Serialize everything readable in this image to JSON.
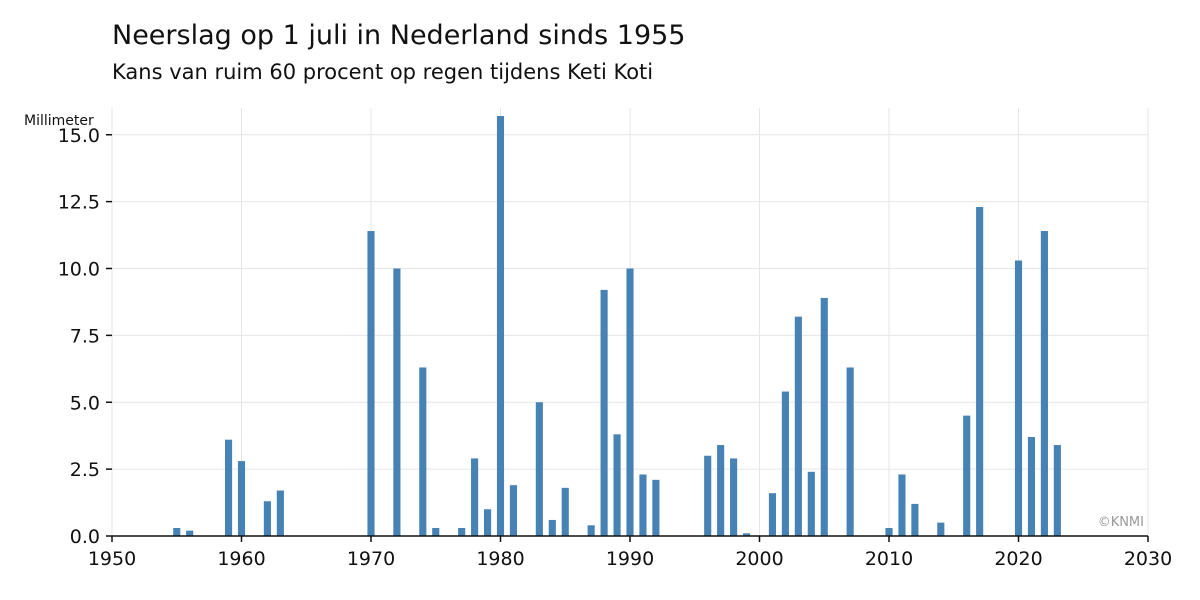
{
  "chart_data": {
    "type": "bar",
    "title": "Neerslag op 1 juli in Nederland sinds 1955",
    "subtitle": "Kans van ruim 60 procent op regen tijdens Keti Koti",
    "ylabel": "Millimeter",
    "xlabel": "",
    "credit": "©KNMI",
    "xlim": [
      1950,
      2030
    ],
    "ylim": [
      0,
      16
    ],
    "x_ticks": [
      1950,
      1960,
      1970,
      1980,
      1990,
      2000,
      2010,
      2020,
      2030
    ],
    "y_ticks": [
      0,
      2.5,
      5,
      7.5,
      10,
      12.5,
      15
    ],
    "grid": true,
    "bar_color": "#4682b4",
    "x": [
      1955,
      1956,
      1957,
      1958,
      1959,
      1960,
      1961,
      1962,
      1963,
      1964,
      1965,
      1966,
      1967,
      1968,
      1969,
      1970,
      1971,
      1972,
      1973,
      1974,
      1975,
      1976,
      1977,
      1978,
      1979,
      1980,
      1981,
      1982,
      1983,
      1984,
      1985,
      1986,
      1987,
      1988,
      1989,
      1990,
      1991,
      1992,
      1993,
      1994,
      1995,
      1996,
      1997,
      1998,
      1999,
      2000,
      2001,
      2002,
      2003,
      2004,
      2005,
      2006,
      2007,
      2008,
      2009,
      2010,
      2011,
      2012,
      2013,
      2014,
      2015,
      2016,
      2017,
      2018,
      2019,
      2020,
      2021,
      2022,
      2023
    ],
    "values": [
      0.3,
      0.2,
      0,
      0,
      3.6,
      2.8,
      0,
      1.3,
      1.7,
      0,
      0,
      0,
      0,
      0,
      0,
      11.4,
      0,
      10.0,
      0,
      6.3,
      0.3,
      0,
      0.3,
      2.9,
      1.0,
      15.7,
      1.9,
      0,
      5.0,
      0.6,
      1.8,
      0,
      0.4,
      9.2,
      3.8,
      10.0,
      2.3,
      2.1,
      0,
      0,
      0,
      3.0,
      3.4,
      2.9,
      0.1,
      0,
      1.6,
      5.4,
      8.2,
      2.4,
      8.9,
      0,
      6.3,
      0,
      0,
      0.3,
      2.3,
      1.2,
      0,
      0.5,
      0,
      4.5,
      12.3,
      0,
      0,
      10.3,
      3.7,
      11.4,
      3.4
    ]
  }
}
